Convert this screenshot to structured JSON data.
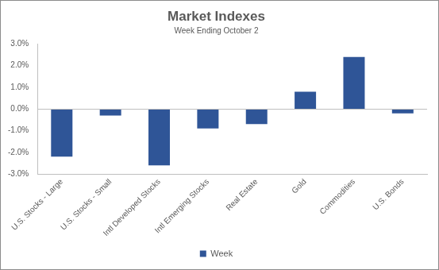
{
  "chart_data": {
    "type": "bar",
    "title": "Market Indexes",
    "subtitle": "Week Ending October 2",
    "categories": [
      "U.S. Stocks - Large",
      "U.S. Stocks - Small",
      "Intl Developed Stocks",
      "Intl Emerging Stocks",
      "Real Estate",
      "Gold",
      "Commodities",
      "U.S. Bonds"
    ],
    "series": [
      {
        "name": "Week",
        "color": "#2f5597",
        "values": [
          -2.2,
          -0.3,
          -2.6,
          -0.9,
          -0.7,
          0.8,
          2.4,
          -0.2
        ]
      }
    ],
    "ylim": [
      -3,
      3
    ],
    "yticks": [
      {
        "value": -3,
        "label": "-3.0%"
      },
      {
        "value": -2,
        "label": "-2.0%"
      },
      {
        "value": -1,
        "label": "-1.0%"
      },
      {
        "value": 0,
        "label": "0.0%"
      },
      {
        "value": 1,
        "label": "1.0%"
      },
      {
        "value": 2,
        "label": "2.0%"
      },
      {
        "value": 3,
        "label": "3.0%"
      }
    ],
    "grid": false,
    "legend": "bottom"
  }
}
